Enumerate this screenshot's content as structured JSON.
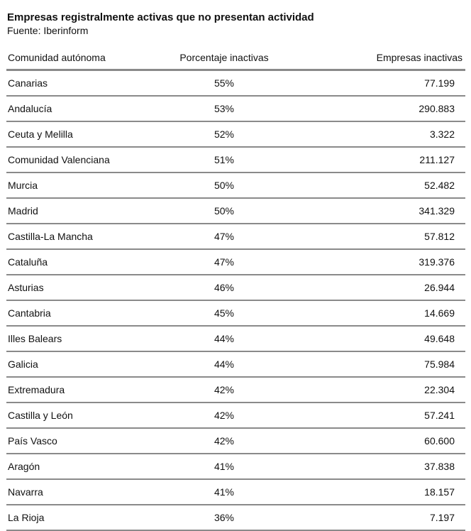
{
  "title": "Empresas registralmente activas que no presentan actividad",
  "source": "Fuente: Iberinform",
  "chart_data": {
    "type": "table",
    "columns": [
      "Comunidad autónoma",
      "Porcentaje inactivas",
      "Empresas inactivas"
    ],
    "rows": [
      [
        "Canarias",
        "55%",
        "77.199"
      ],
      [
        "Andalucía",
        "53%",
        "290.883"
      ],
      [
        "Ceuta y Melilla",
        "52%",
        "3.322"
      ],
      [
        "Comunidad Valenciana",
        "51%",
        "211.127"
      ],
      [
        "Murcia",
        "50%",
        "52.482"
      ],
      [
        "Madrid",
        "50%",
        "341.329"
      ],
      [
        "Castilla-La Mancha",
        "47%",
        "57.812"
      ],
      [
        "Cataluña",
        "47%",
        "319.376"
      ],
      [
        "Asturias",
        "46%",
        "26.944"
      ],
      [
        "Cantabria",
        "45%",
        "14.669"
      ],
      [
        "Illes Balears",
        "44%",
        "49.648"
      ],
      [
        "Galicia",
        "44%",
        "75.984"
      ],
      [
        "Extremadura",
        "42%",
        "22.304"
      ],
      [
        "Castilla y León",
        "42%",
        "57.241"
      ],
      [
        "País Vasco",
        "42%",
        "60.600"
      ],
      [
        "Aragón",
        "41%",
        "37.838"
      ],
      [
        "Navarra",
        "41%",
        "18.157"
      ],
      [
        "La Rioja",
        "36%",
        "7.197"
      ]
    ]
  }
}
